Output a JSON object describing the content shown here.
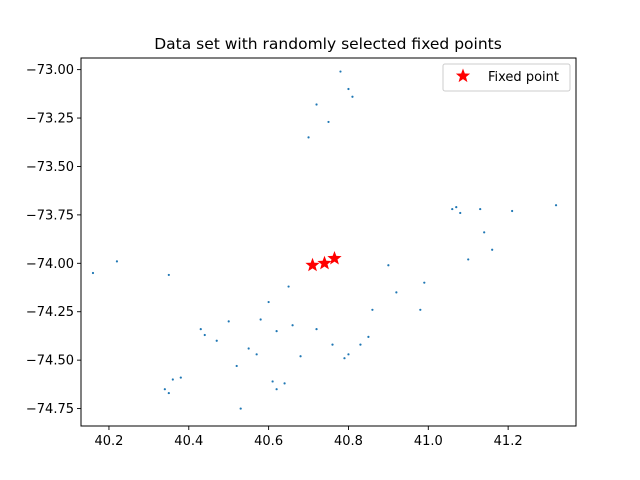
{
  "chart_data": {
    "type": "scatter",
    "title": "Data set with randomly selected fixed points",
    "xlabel": "",
    "ylabel": "",
    "xlim": [
      40.13,
      41.37
    ],
    "ylim": [
      -74.84,
      -72.94
    ],
    "x_ticks": [
      40.2,
      40.4,
      40.6,
      40.8,
      41.0,
      41.2
    ],
    "x_tick_labels": [
      "40.2",
      "40.4",
      "40.6",
      "40.8",
      "41.0",
      "41.2"
    ],
    "y_ticks": [
      -73.0,
      -73.25,
      -73.5,
      -73.75,
      -74.0,
      -74.25,
      -74.5,
      -74.75
    ],
    "y_tick_labels": [
      "−73.00",
      "−73.25",
      "−73.50",
      "−73.75",
      "−74.00",
      "−74.25",
      "−74.50",
      "−74.75"
    ],
    "grid": false,
    "legend_position": "top-right",
    "series": [
      {
        "name": "",
        "color": "#1f77b4",
        "marker": "dot",
        "points": [
          [
            40.16,
            -74.05
          ],
          [
            40.22,
            -73.99
          ],
          [
            40.35,
            -74.06
          ],
          [
            40.34,
            -74.65
          ],
          [
            40.35,
            -74.67
          ],
          [
            40.36,
            -74.6
          ],
          [
            40.38,
            -74.59
          ],
          [
            40.43,
            -74.34
          ],
          [
            40.44,
            -74.37
          ],
          [
            40.47,
            -74.4
          ],
          [
            40.5,
            -74.3
          ],
          [
            40.52,
            -74.53
          ],
          [
            40.53,
            -74.75
          ],
          [
            40.55,
            -74.44
          ],
          [
            40.57,
            -74.47
          ],
          [
            40.58,
            -74.29
          ],
          [
            40.61,
            -74.61
          ],
          [
            40.62,
            -74.65
          ],
          [
            40.64,
            -74.62
          ],
          [
            40.78,
            -73.01
          ],
          [
            40.8,
            -73.1
          ],
          [
            40.81,
            -73.14
          ],
          [
            40.72,
            -73.18
          ],
          [
            40.75,
            -73.27
          ],
          [
            40.7,
            -73.35
          ],
          [
            41.07,
            -73.71
          ],
          [
            41.08,
            -73.74
          ],
          [
            41.13,
            -73.72
          ],
          [
            41.14,
            -73.84
          ],
          [
            41.16,
            -73.93
          ],
          [
            41.21,
            -73.73
          ],
          [
            41.32,
            -73.7
          ],
          [
            41.06,
            -73.72
          ],
          [
            41.1,
            -73.98
          ],
          [
            40.98,
            -74.24
          ],
          [
            40.99,
            -74.1
          ],
          [
            40.9,
            -74.01
          ],
          [
            40.92,
            -74.15
          ],
          [
            40.86,
            -74.24
          ],
          [
            40.83,
            -74.42
          ],
          [
            40.85,
            -74.38
          ],
          [
            40.8,
            -74.47
          ],
          [
            40.79,
            -74.49
          ],
          [
            40.76,
            -74.42
          ],
          [
            40.72,
            -74.34
          ],
          [
            40.66,
            -74.32
          ],
          [
            40.68,
            -74.48
          ],
          [
            40.62,
            -74.35
          ],
          [
            40.6,
            -74.2
          ],
          [
            40.65,
            -74.12
          ]
        ]
      },
      {
        "name": "Fixed point",
        "color": "#ff0000",
        "marker": "star",
        "points": [
          [
            40.71,
            -74.01
          ],
          [
            40.74,
            -74.0
          ],
          [
            40.765,
            -73.975
          ]
        ]
      }
    ]
  }
}
